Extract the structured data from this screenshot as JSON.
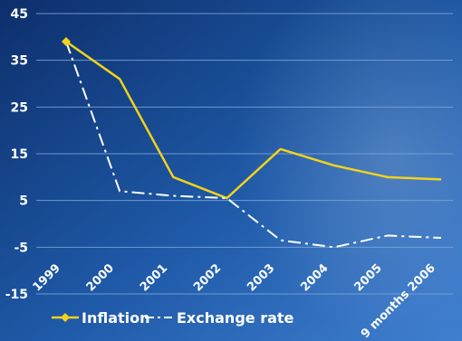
{
  "chart_data": {
    "type": "line",
    "categories": [
      "1999",
      "2000",
      "2001",
      "2002",
      "2003",
      "2004",
      "2005",
      "9 months 2006"
    ],
    "series": [
      {
        "name": "Inflation",
        "color": "#f2d21b",
        "style": "solid",
        "marker": "diamond",
        "values": [
          39,
          31,
          10,
          5.5,
          16,
          12.5,
          10,
          9.5
        ]
      },
      {
        "name": "Exchange rate",
        "color": "#ffffff",
        "style": "dash-dot",
        "values": [
          39,
          7,
          6,
          5.5,
          -3.5,
          -5,
          -2.5,
          -3
        ]
      }
    ],
    "y_ticks": [
      45,
      35,
      25,
      15,
      5,
      -5,
      -15
    ],
    "ylim": [
      -15,
      45
    ],
    "grid": true,
    "legend_position": "bottom-left",
    "title": "",
    "xlabel": "",
    "ylabel": ""
  },
  "colors": {
    "background_dark": "#0d2f6b",
    "background_mid": "#1f5aa8",
    "background_light": "#3f7fd0",
    "grid": "#7aa7d9"
  }
}
